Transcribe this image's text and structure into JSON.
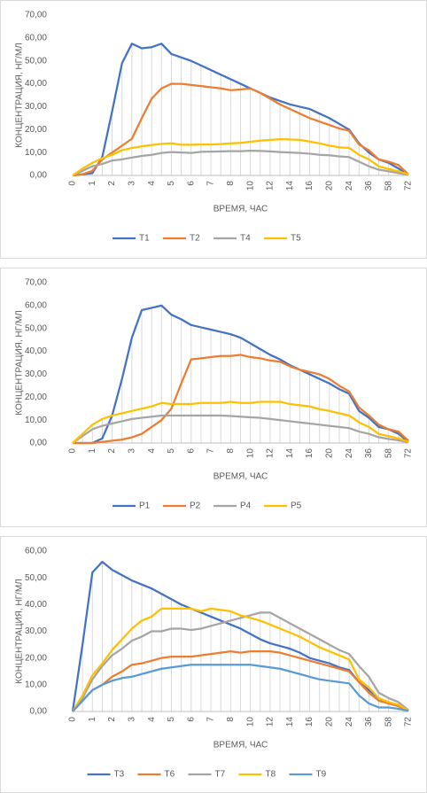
{
  "chart_data": [
    {
      "type": "line",
      "xlabel": "ВРЕМЯ, ЧАС",
      "ylabel": "КОНЦЕНТРАЦИЯ, НГ/МЛ",
      "categories": [
        "0",
        null,
        "1",
        null,
        "2",
        null,
        "3",
        null,
        "4",
        null,
        "5",
        null,
        "6",
        null,
        "7",
        null,
        "8",
        null,
        "10",
        null,
        "12",
        null,
        "14",
        null,
        "16",
        null,
        "20",
        null,
        "24",
        null,
        "36",
        null,
        "58",
        null,
        "72"
      ],
      "ylim": [
        0,
        70
      ],
      "yticks": [
        {
          "value": 0,
          "label": "0,00"
        },
        {
          "value": 10,
          "label": "10,00"
        },
        {
          "value": 20,
          "label": "20,00"
        },
        {
          "value": 30,
          "label": "30,00"
        },
        {
          "value": 40,
          "label": "40,00"
        },
        {
          "value": 50,
          "label": "50,00"
        },
        {
          "value": 60,
          "label": "60,00"
        },
        {
          "value": 70,
          "label": "70,00"
        }
      ],
      "grid": false,
      "legend": "bottom",
      "series": [
        {
          "name": "T1",
          "color": "#4472c4",
          "values": [
            0,
            0.5,
            1,
            8,
            28,
            49,
            57.5,
            55.5,
            56,
            57.5,
            53,
            51.5,
            50,
            48,
            46,
            44,
            42,
            40,
            38,
            36,
            34,
            32.5,
            31,
            30,
            29,
            27,
            25,
            22.5,
            20,
            14,
            10,
            7,
            5.5,
            3,
            0.5
          ]
        },
        {
          "name": "T2",
          "color": "#ed7d31",
          "values": [
            0,
            0.5,
            2,
            7,
            10,
            13,
            16,
            25,
            33.5,
            38,
            40,
            40,
            39.5,
            39,
            38.5,
            38,
            37.2,
            37.5,
            38,
            36,
            33.5,
            31,
            29,
            27,
            25,
            23.5,
            22,
            20.5,
            19.5,
            13.5,
            11,
            7,
            6,
            4.5,
            0.5
          ]
        },
        {
          "name": "T4",
          "color": "#a5a5a5",
          "values": [
            0,
            2,
            4,
            5,
            6.5,
            7,
            7.8,
            8.5,
            9,
            9.8,
            10.2,
            10,
            9.8,
            10.3,
            10.4,
            10.5,
            10.6,
            10.6,
            10.8,
            10.7,
            10.5,
            10.2,
            10,
            9.8,
            9.5,
            9,
            8.8,
            8.3,
            8,
            6,
            4,
            2.5,
            1.8,
            1,
            0.3
          ]
        },
        {
          "name": "T5",
          "color": "#ffc000",
          "values": [
            0,
            3,
            5.5,
            7.5,
            9,
            11,
            12,
            12.7,
            13.3,
            13.8,
            14,
            13.4,
            13.4,
            13.5,
            13.5,
            13.7,
            14,
            14.2,
            14.7,
            15.2,
            15.5,
            15.8,
            15.7,
            15.5,
            14.8,
            14,
            13,
            12.3,
            12,
            9,
            7,
            4,
            2.8,
            1.8,
            0.5
          ]
        }
      ]
    },
    {
      "type": "line",
      "xlabel": "ВРЕМЯ, ЧАС",
      "ylabel": "КОНЦЕНТРАЦИЯ, НГ/МЛ",
      "categories": [
        "0",
        null,
        "1",
        null,
        "2",
        null,
        "3",
        null,
        "4",
        null,
        "5",
        null,
        "6",
        null,
        "7",
        null,
        "8",
        null,
        "10",
        null,
        "12",
        null,
        "14",
        null,
        "16",
        null,
        "20",
        null,
        "24",
        null,
        "36",
        null,
        "58",
        null,
        "72"
      ],
      "ylim": [
        0,
        70
      ],
      "yticks": [
        {
          "value": 0,
          "label": "0,00"
        },
        {
          "value": 10,
          "label": "10,00"
        },
        {
          "value": 20,
          "label": "20,00"
        },
        {
          "value": 30,
          "label": "30,00"
        },
        {
          "value": 40,
          "label": "40,00"
        },
        {
          "value": 50,
          "label": "50,00"
        },
        {
          "value": 60,
          "label": "60,00"
        },
        {
          "value": 70,
          "label": "70,00"
        }
      ],
      "grid": false,
      "legend": "bottom",
      "series": [
        {
          "name": "P1",
          "color": "#4472c4",
          "values": [
            0,
            0,
            0,
            2,
            12,
            28,
            46,
            58,
            59,
            60,
            56,
            54,
            51.5,
            50.5,
            49.5,
            48.5,
            47.5,
            46,
            43.5,
            41,
            38.5,
            36.5,
            34,
            32,
            30,
            28,
            26,
            23.5,
            21.5,
            14,
            11,
            7,
            6,
            4,
            0.5
          ]
        },
        {
          "name": "P2",
          "color": "#ed7d31",
          "values": [
            0,
            0,
            0,
            0.5,
            1,
            1.5,
            2.5,
            4,
            7,
            10,
            15,
            26,
            36.5,
            37,
            37.5,
            38,
            38,
            38.5,
            37.5,
            37,
            36,
            35.5,
            33.5,
            32,
            31,
            30,
            28,
            25,
            22.5,
            15.5,
            12,
            8,
            6,
            5,
            1
          ]
        },
        {
          "name": "P4",
          "color": "#a5a5a5",
          "values": [
            0,
            3,
            6,
            7.5,
            8.5,
            9.5,
            10.5,
            11,
            11.5,
            12,
            12,
            12,
            12,
            12,
            12,
            12,
            11.8,
            11.5,
            11.2,
            11,
            10.5,
            10,
            9.5,
            9,
            8.5,
            8,
            7.5,
            7,
            6.5,
            5,
            4,
            2.5,
            1.8,
            1.2,
            0.3
          ]
        },
        {
          "name": "P5",
          "color": "#ffc000",
          "values": [
            0,
            4,
            8,
            10.5,
            12,
            13,
            14,
            15,
            16,
            17.5,
            17,
            17,
            17,
            17.5,
            17.5,
            17.5,
            18,
            17.5,
            17.5,
            18,
            18,
            18,
            17,
            16.5,
            16,
            14.8,
            14,
            13,
            12,
            9,
            7,
            4,
            3,
            2,
            0.5
          ]
        }
      ]
    },
    {
      "type": "line",
      "xlabel": "ВРЕМЯ, ЧАС",
      "ylabel": "КОНЦЕНТРАЦИЯ, НГ/МЛ",
      "categories": [
        "0",
        null,
        "1",
        null,
        "2",
        null,
        "3",
        null,
        "4",
        null,
        "5",
        null,
        "6",
        null,
        "7",
        null,
        "8",
        null,
        "10",
        null,
        "12",
        null,
        "14",
        null,
        "16",
        null,
        "20",
        null,
        "24",
        null,
        "36",
        null,
        "58",
        null,
        "72"
      ],
      "ylim": [
        0,
        60
      ],
      "yticks": [
        {
          "value": 0,
          "label": "0,00"
        },
        {
          "value": 10,
          "label": "10,00"
        },
        {
          "value": 20,
          "label": "20,00"
        },
        {
          "value": 30,
          "label": "30,00"
        },
        {
          "value": 40,
          "label": "40,00"
        },
        {
          "value": 50,
          "label": "50,00"
        },
        {
          "value": 60,
          "label": "60,00"
        }
      ],
      "grid": false,
      "legend": "bottom",
      "series": [
        {
          "name": "T3",
          "color": "#4472c4",
          "values": [
            0,
            25,
            52,
            56,
            53,
            51,
            49,
            47.5,
            46,
            44,
            42,
            40,
            38.5,
            37,
            35.5,
            34,
            32.5,
            31,
            29,
            27,
            25.5,
            24.5,
            23.5,
            22,
            20,
            19,
            18,
            16.5,
            15.5,
            11,
            8,
            5,
            3,
            2,
            0.3
          ]
        },
        {
          "name": "T6",
          "color": "#ed7d31",
          "values": [
            0,
            4,
            8,
            10,
            13,
            15,
            17.5,
            18,
            19,
            20,
            20.5,
            20.5,
            20.5,
            21,
            21.5,
            22,
            22.5,
            22,
            22.5,
            22.5,
            22.5,
            22,
            21,
            20,
            19,
            18,
            17,
            16,
            15,
            11,
            7,
            4,
            3,
            2,
            0.2
          ]
        },
        {
          "name": "T7",
          "color": "#a5a5a5",
          "values": [
            0,
            5,
            12,
            17,
            21,
            23.5,
            26.5,
            28,
            30,
            30,
            31,
            31,
            30.5,
            31,
            32,
            33,
            34,
            35,
            36,
            37,
            37,
            35,
            33,
            31,
            29,
            27,
            25,
            23,
            21.5,
            17,
            13,
            7,
            5,
            3.5,
            0.5
          ]
        },
        {
          "name": "T8",
          "color": "#ffc000",
          "values": [
            0,
            6,
            13.5,
            18,
            23,
            27,
            31,
            34,
            35.5,
            38.5,
            38.5,
            38.5,
            38.5,
            37.5,
            38.5,
            38,
            37.5,
            36,
            35,
            34,
            32.5,
            31,
            29.5,
            28,
            26,
            24,
            22.5,
            21,
            19.5,
            12,
            9,
            5,
            3.5,
            2.5,
            0.3
          ]
        },
        {
          "name": "T9",
          "color": "#5b9bd5",
          "values": [
            0,
            4,
            8,
            10,
            11.5,
            12.5,
            13,
            14,
            15,
            16,
            16.5,
            17,
            17.5,
            17.5,
            17.5,
            17.5,
            17.5,
            17.5,
            17.5,
            17,
            16.5,
            16,
            15,
            14,
            13,
            12,
            11.5,
            11,
            10.5,
            6,
            3,
            1.5,
            1.5,
            1,
            0.2
          ]
        }
      ]
    }
  ]
}
